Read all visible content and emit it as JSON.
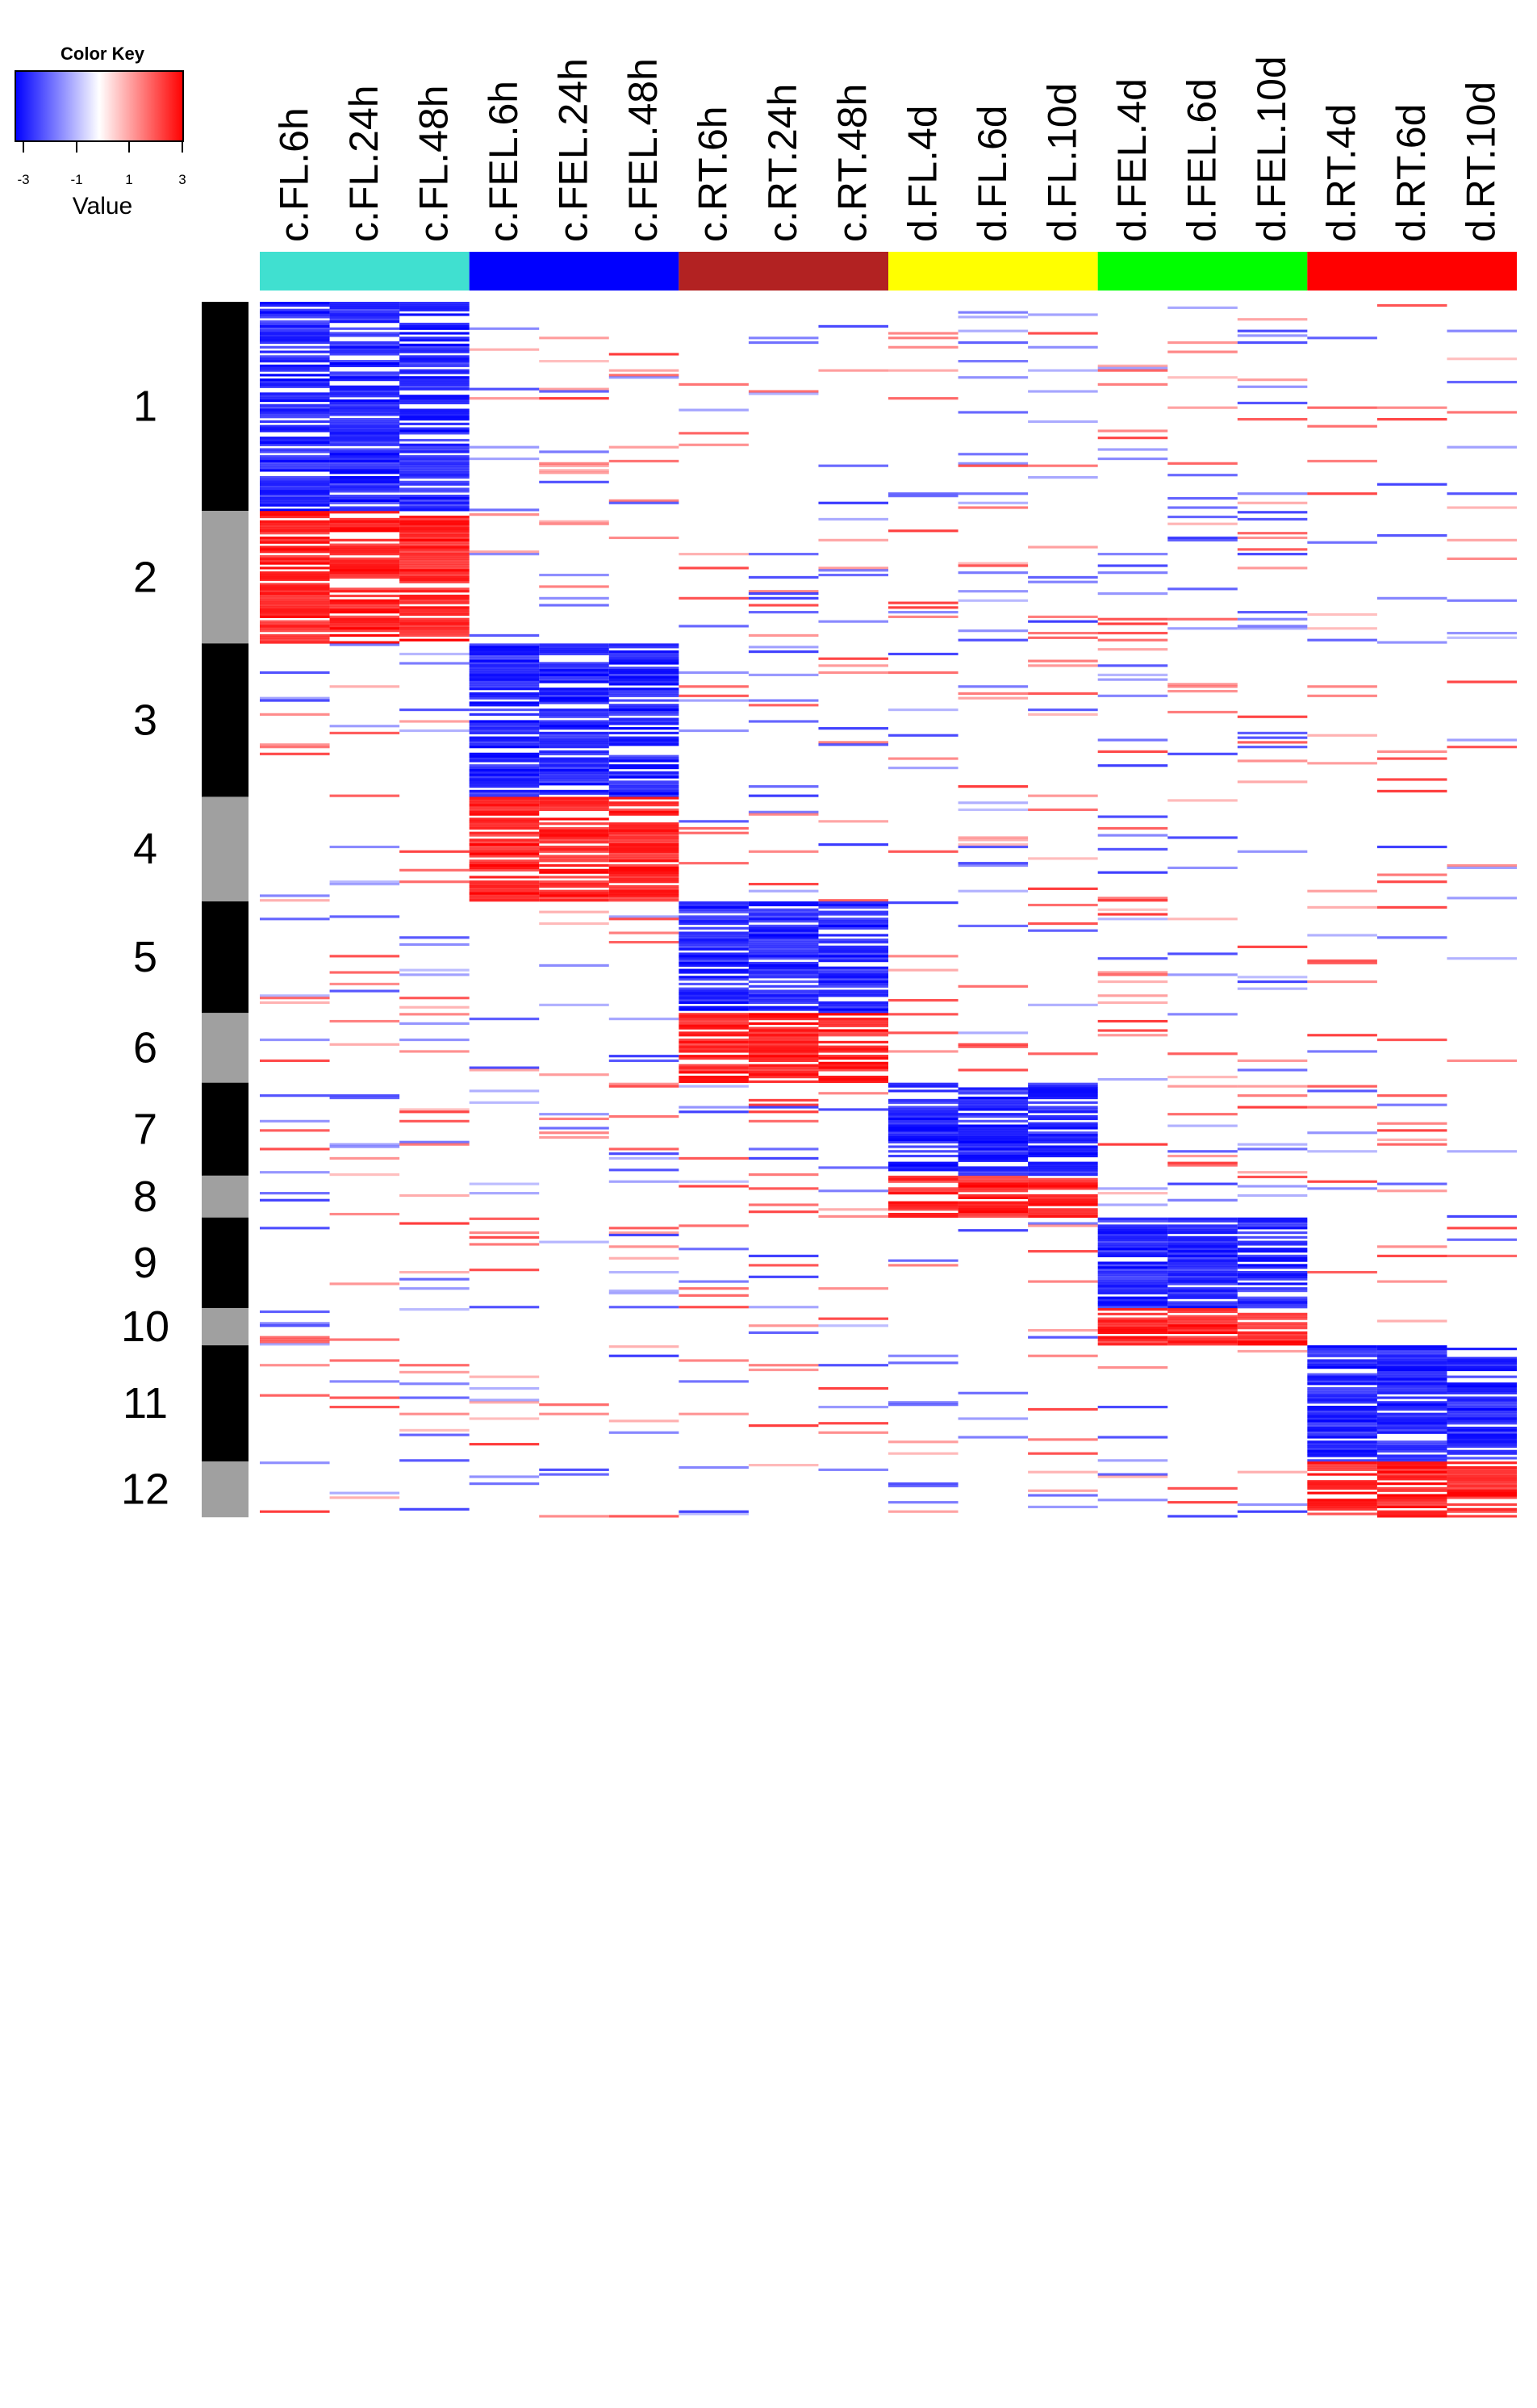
{
  "chart_data": {
    "type": "heatmap",
    "title": "",
    "color_key": {
      "title": "Color Key",
      "xlabel": "Value",
      "ticks": [
        "-3",
        "-1",
        "1",
        "3"
      ],
      "range": [
        -3,
        3
      ],
      "low_color": "#0000ff",
      "mid_color": "#ffffff",
      "high_color": "#ff0000"
    },
    "groups": [
      {
        "name": "c.FL",
        "color": "#40e0d0",
        "columns": [
          "c.FL.6h",
          "c.FL.24h",
          "c.FL.48h"
        ]
      },
      {
        "name": "c.FEL",
        "color": "#0000ff",
        "columns": [
          "c.FEL.6h",
          "c.FEL.24h",
          "c.FEL.48h"
        ]
      },
      {
        "name": "c.RT",
        "color": "#b22222",
        "columns": [
          "c.RT.6h",
          "c.RT.24h",
          "c.RT.48h"
        ]
      },
      {
        "name": "d.FL",
        "color": "#ffff00",
        "columns": [
          "d.FL.4d",
          "d.FL.6d",
          "d.FL.10d"
        ]
      },
      {
        "name": "d.FEL",
        "color": "#00ff00",
        "columns": [
          "d.FEL.4d",
          "d.FEL.6d",
          "d.FEL.10d"
        ]
      },
      {
        "name": "d.RT",
        "color": "#ff0000",
        "columns": [
          "d.RT.4d",
          "d.RT.6d",
          "d.RT.10d"
        ]
      }
    ],
    "columns": [
      "c.FL.6h",
      "c.FL.24h",
      "c.FL.48h",
      "c.FEL.6h",
      "c.FEL.24h",
      "c.FEL.48h",
      "c.RT.6h",
      "c.RT.24h",
      "c.RT.48h",
      "d.FL.4d",
      "d.FL.6d",
      "d.FL.10d",
      "d.FEL.4d",
      "d.FEL.6d",
      "d.FEL.10d",
      "d.RT.4d",
      "d.RT.6d",
      "d.RT.10d"
    ],
    "row_count": 900,
    "clusters": [
      {
        "label": "1",
        "rows": 90,
        "bar_color": "#000000",
        "direction": "down",
        "group": "c.FL"
      },
      {
        "label": "2",
        "rows": 57,
        "bar_color": "#a0a0a0",
        "direction": "up",
        "group": "c.FL"
      },
      {
        "label": "3",
        "rows": 66,
        "bar_color": "#000000",
        "direction": "down",
        "group": "c.FEL"
      },
      {
        "label": "4",
        "rows": 45,
        "bar_color": "#a0a0a0",
        "direction": "up",
        "group": "c.FEL"
      },
      {
        "label": "5",
        "rows": 48,
        "bar_color": "#000000",
        "direction": "down",
        "group": "c.RT"
      },
      {
        "label": "6",
        "rows": 30,
        "bar_color": "#a0a0a0",
        "direction": "up",
        "group": "c.RT"
      },
      {
        "label": "7",
        "rows": 40,
        "bar_color": "#000000",
        "direction": "down",
        "group": "d.FL"
      },
      {
        "label": "8",
        "rows": 18,
        "bar_color": "#a0a0a0",
        "direction": "up",
        "group": "d.FL"
      },
      {
        "label": "9",
        "rows": 39,
        "bar_color": "#000000",
        "direction": "down",
        "group": "d.FEL"
      },
      {
        "label": "10",
        "rows": 16,
        "bar_color": "#a0a0a0",
        "direction": "up",
        "group": "d.FEL"
      },
      {
        "label": "11",
        "rows": 50,
        "bar_color": "#000000",
        "direction": "down",
        "group": "d.RT"
      },
      {
        "label": "12",
        "rows": 24,
        "bar_color": "#a0a0a0",
        "direction": "up",
        "group": "d.RT"
      }
    ]
  }
}
